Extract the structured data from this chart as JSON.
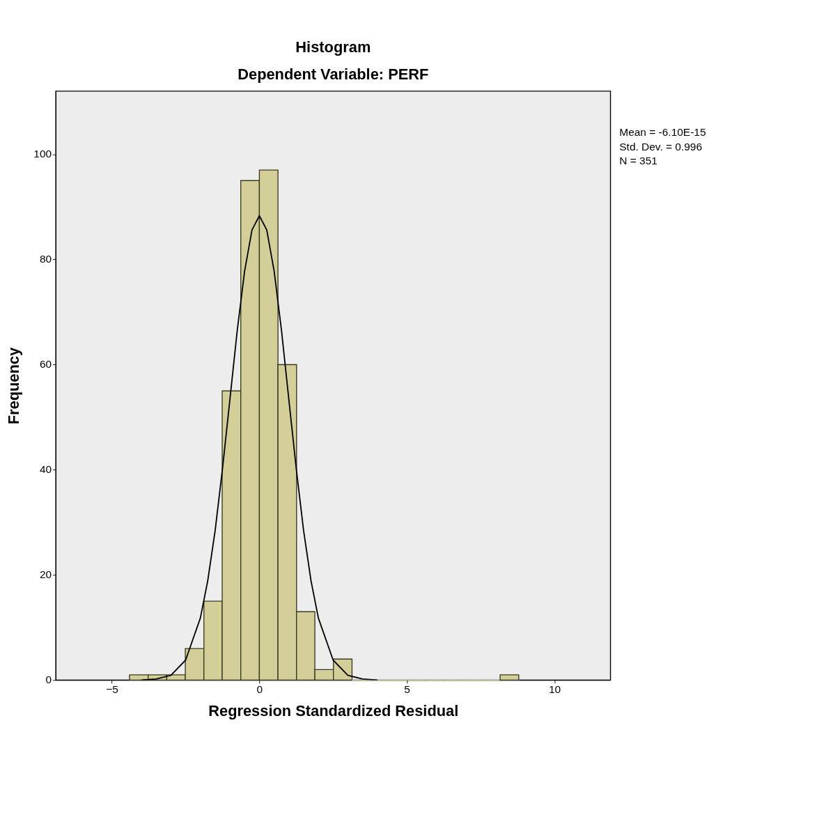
{
  "chart_data": {
    "type": "histogram",
    "title": "Histogram",
    "subtitle": "Dependent Variable: PERF",
    "xlabel": "Regression Standardized Residual",
    "ylabel": "Frequency",
    "bins": [
      -4.4,
      -3.77,
      -3.14,
      -2.51,
      -1.88,
      -1.26,
      -0.63,
      0,
      0.63,
      1.26,
      1.88,
      2.51,
      3.14,
      3.77,
      4.4,
      5.02,
      5.65,
      6.28,
      6.91,
      7.54,
      8.16,
      8.79
    ],
    "values": [
      1,
      1,
      1,
      6,
      15,
      55,
      95,
      97,
      60,
      13,
      2,
      4,
      0,
      0,
      0,
      0,
      0,
      0,
      0,
      0,
      1
    ],
    "color": "#d4cf99",
    "series": [
      {
        "type": "line",
        "color": "#000000",
        "x": [
          -4,
          -3.5,
          -3,
          -2.5,
          -2,
          -1.75,
          -1.5,
          -1.25,
          -1,
          -0.75,
          -0.5,
          -0.25,
          0,
          0.25,
          0.5,
          0.75,
          1,
          1.25,
          1.5,
          1.75,
          2,
          2.5,
          3,
          3.5,
          4
        ],
        "values": [
          0,
          0.2,
          0.9,
          3.8,
          11.8,
          18.9,
          28.4,
          40.2,
          53.3,
          66.5,
          77.8,
          85.6,
          88.3,
          85.6,
          77.8,
          66.5,
          53.3,
          40.2,
          28.4,
          18.9,
          11.8,
          3.8,
          0.9,
          0.2,
          0
        ]
      }
    ],
    "xlim": [
      -6.9,
      11.9
    ],
    "ylim": [
      0,
      112
    ],
    "xticks": [
      -5,
      0,
      5,
      10
    ],
    "yticks": [
      0,
      20,
      40,
      60,
      80,
      100
    ],
    "grid": false,
    "annotations": [
      "Mean = -6.10E-15",
      "Std. Dev. = 0.996",
      "N = 351"
    ]
  }
}
